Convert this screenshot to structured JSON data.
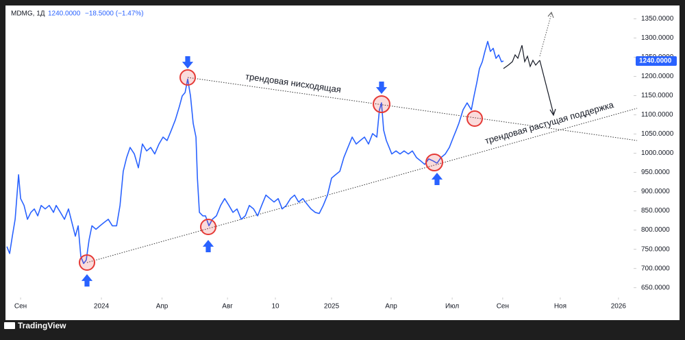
{
  "chart_data": {
    "type": "line",
    "symbol": "MDMG, 1Д",
    "change": "−18.5000 (−1.47%)",
    "price_badge": {
      "value": 1240,
      "label": "1240.0000"
    },
    "annotations": [
      "трендовая нисходящая",
      "трендовая растущая поддержка"
    ],
    "brand": "TradingView",
    "x": [
      -0.68,
      -0.54,
      -0.41,
      -0.27,
      -0.1,
      0,
      0.17,
      0.34,
      0.51,
      0.68,
      0.85,
      1.02,
      1.22,
      1.42,
      1.63,
      1.76,
      1.97,
      2.17,
      2.37,
      2.58,
      2.71,
      2.85,
      2.98,
      3.12,
      3.25,
      3.39,
      3.53,
      3.73,
      3.93,
      4.14,
      4.34,
      4.54,
      4.75,
      4.92,
      5.08,
      5.25,
      5.42,
      5.63,
      5.83,
      6.03,
      6.24,
      6.44,
      6.64,
      6.85,
      7.05,
      7.25,
      7.46,
      7.66,
      7.86,
      8.0,
      8.14,
      8.27,
      8.41,
      8.54,
      8.68,
      8.75,
      8.85,
      9.02,
      9.15,
      9.32,
      9.49,
      9.69,
      9.9,
      10.1,
      10.31,
      10.51,
      10.71,
      10.92,
      11.12,
      11.32,
      11.53,
      11.73,
      11.93,
      12.14,
      12.34,
      12.54,
      12.75,
      12.95,
      13.15,
      13.36,
      13.56,
      13.76,
      13.97,
      14.17,
      14.37,
      14.58,
      14.78,
      14.98,
      15.19,
      15.39,
      15.59,
      15.8,
      16.0,
      16.2,
      16.41,
      16.61,
      16.81,
      17.02,
      17.22,
      17.42,
      17.63,
      17.76,
      17.86,
      17.97,
      18.1,
      18.24,
      18.37,
      18.58,
      18.78,
      18.98,
      19.19,
      19.39,
      19.59,
      19.8,
      20.0,
      20.2,
      20.41,
      20.61,
      20.81,
      21.02,
      21.22,
      21.42,
      21.56,
      21.69,
      21.9,
      22.1,
      22.31,
      22.44,
      22.58,
      22.71,
      22.85,
      22.98,
      23.12,
      23.25,
      23.39,
      23.53,
      23.66,
      23.8,
      23.9
    ],
    "series": [
      {
        "name": "MDMG",
        "color": "#2962ff",
        "values": [
          757,
          739,
          784,
          828,
          944,
          882,
          864,
          828,
          846,
          855,
          837,
          864,
          855,
          864,
          846,
          864,
          846,
          828,
          855,
          811,
          784,
          811,
          731,
          713,
          722,
          775,
          811,
          802,
          811,
          820,
          828,
          811,
          811,
          864,
          953,
          989,
          1015,
          998,
          962,
          1024,
          1006,
          1015,
          998,
          1024,
          1042,
          1033,
          1060,
          1087,
          1122,
          1149,
          1158,
          1193,
          1149,
          1078,
          1042,
          935,
          846,
          837,
          837,
          811,
          828,
          837,
          864,
          882,
          864,
          846,
          855,
          828,
          837,
          864,
          855,
          837,
          864,
          891,
          882,
          873,
          882,
          855,
          864,
          882,
          891,
          873,
          882,
          868,
          855,
          846,
          843,
          864,
          891,
          935,
          944,
          953,
          989,
          1015,
          1042,
          1024,
          1033,
          1042,
          1024,
          1051,
          1042,
          1113,
          1131,
          1060,
          1033,
          1015,
          998,
          1006,
          998,
          1006,
          998,
          1006,
          989,
          980,
          971,
          985,
          980,
          974,
          989,
          998,
          1015,
          1042,
          1060,
          1078,
          1113,
          1131,
          1113,
          1149,
          1184,
          1220,
          1238,
          1265,
          1291,
          1265,
          1273,
          1247,
          1256,
          1238,
          1240
        ]
      }
    ],
    "xlim": [
      -0.68,
      30.34
    ],
    "xticks": [
      {
        "value": 0,
        "label": "Сен"
      },
      {
        "value": 4,
        "label": "2024"
      },
      {
        "value": 7,
        "label": "Апр"
      },
      {
        "value": 10.24,
        "label": "Авг"
      },
      {
        "value": 12.61,
        "label": "10"
      },
      {
        "value": 15.39,
        "label": "2025"
      },
      {
        "value": 18.34,
        "label": "Апр"
      },
      {
        "value": 21.36,
        "label": "Июл"
      },
      {
        "value": 23.86,
        "label": "Сен"
      },
      {
        "value": 26.71,
        "label": "Ноя"
      },
      {
        "value": 29.59,
        "label": "2026"
      }
    ],
    "ylim": [
      628,
      1381
    ],
    "yticks": [
      {
        "value": 650,
        "label": "650.0000"
      },
      {
        "value": 700,
        "label": "700.0000"
      },
      {
        "value": 750,
        "label": "750.0000"
      },
      {
        "value": 800,
        "label": "800.0000"
      },
      {
        "value": 850,
        "label": "850.0000"
      },
      {
        "value": 900,
        "label": "900.0000"
      },
      {
        "value": 950,
        "label": "950.0000"
      },
      {
        "value": 1000,
        "label": "1000.0000"
      },
      {
        "value": 1050,
        "label": "1050.0000"
      },
      {
        "value": 1100,
        "label": "1100.0000"
      },
      {
        "value": 1150,
        "label": "1150.0000"
      },
      {
        "value": 1200,
        "label": "1200.0000"
      },
      {
        "value": 1250,
        "label": "1250.0000"
      },
      {
        "value": 1300,
        "label": "1300.0000"
      },
      {
        "value": 1350,
        "label": "1350.0000"
      }
    ]
  }
}
